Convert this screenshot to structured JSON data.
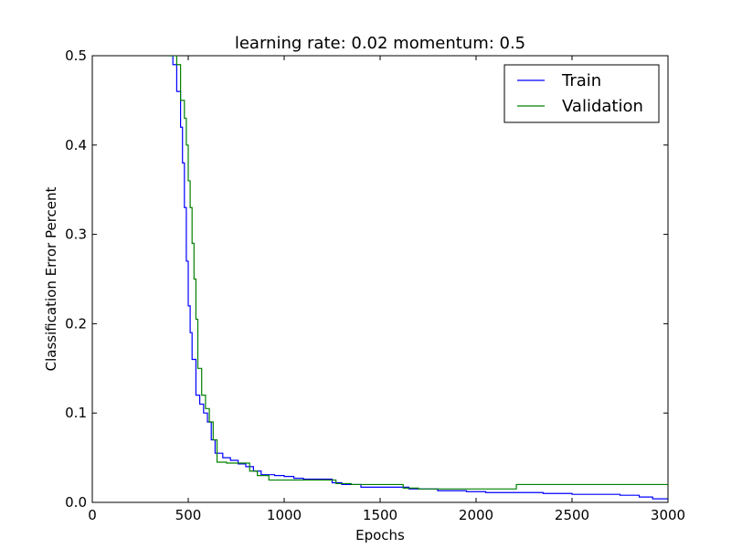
{
  "chart_data": {
    "type": "line",
    "title": "learning rate: 0.02 momentum: 0.5",
    "xlabel": "Epochs",
    "ylabel": "Classification Error Percent",
    "xlim": [
      0,
      3000
    ],
    "ylim": [
      0.0,
      0.5
    ],
    "xticks": [
      0,
      500,
      1000,
      1500,
      2000,
      2500,
      3000
    ],
    "yticks": [
      0.0,
      0.1,
      0.2,
      0.3,
      0.4,
      0.5
    ],
    "ytick_labels": [
      "0.0",
      "0.1",
      "0.2",
      "0.3",
      "0.4",
      "0.5"
    ],
    "grid": false,
    "legend_position": "top-right",
    "series": [
      {
        "name": "Train",
        "color": "#0000ff",
        "step": true,
        "points": [
          [
            400,
            0.5
          ],
          [
            420,
            0.49
          ],
          [
            440,
            0.46
          ],
          [
            460,
            0.42
          ],
          [
            470,
            0.38
          ],
          [
            480,
            0.33
          ],
          [
            490,
            0.27
          ],
          [
            500,
            0.22
          ],
          [
            510,
            0.19
          ],
          [
            520,
            0.16
          ],
          [
            540,
            0.12
          ],
          [
            560,
            0.11
          ],
          [
            580,
            0.1
          ],
          [
            600,
            0.09
          ],
          [
            620,
            0.07
          ],
          [
            640,
            0.055
          ],
          [
            680,
            0.05
          ],
          [
            720,
            0.047
          ],
          [
            760,
            0.043
          ],
          [
            800,
            0.04
          ],
          [
            840,
            0.035
          ],
          [
            880,
            0.031
          ],
          [
            950,
            0.03
          ],
          [
            1000,
            0.029
          ],
          [
            1050,
            0.027
          ],
          [
            1100,
            0.026
          ],
          [
            1250,
            0.022
          ],
          [
            1300,
            0.02
          ],
          [
            1400,
            0.017
          ],
          [
            1650,
            0.015
          ],
          [
            1800,
            0.013
          ],
          [
            1950,
            0.012
          ],
          [
            2050,
            0.011
          ],
          [
            2350,
            0.01
          ],
          [
            2500,
            0.009
          ],
          [
            2750,
            0.008
          ],
          [
            2850,
            0.006
          ],
          [
            2920,
            0.004
          ],
          [
            3000,
            0.004
          ]
        ]
      },
      {
        "name": "Validation",
        "color": "#008000",
        "step": true,
        "points": [
          [
            400,
            0.5
          ],
          [
            440,
            0.49
          ],
          [
            460,
            0.45
          ],
          [
            480,
            0.43
          ],
          [
            490,
            0.4
          ],
          [
            500,
            0.36
          ],
          [
            510,
            0.33
          ],
          [
            520,
            0.29
          ],
          [
            530,
            0.25
          ],
          [
            540,
            0.205
          ],
          [
            550,
            0.15
          ],
          [
            570,
            0.12
          ],
          [
            590,
            0.105
          ],
          [
            610,
            0.09
          ],
          [
            630,
            0.07
          ],
          [
            650,
            0.045
          ],
          [
            700,
            0.044
          ],
          [
            760,
            0.044
          ],
          [
            820,
            0.035
          ],
          [
            860,
            0.03
          ],
          [
            920,
            0.025
          ],
          [
            1000,
            0.025
          ],
          [
            1150,
            0.025
          ],
          [
            1270,
            0.021
          ],
          [
            1350,
            0.02
          ],
          [
            1620,
            0.016
          ],
          [
            1700,
            0.015
          ],
          [
            2000,
            0.015
          ],
          [
            2210,
            0.02
          ],
          [
            3000,
            0.02
          ]
        ]
      }
    ]
  }
}
